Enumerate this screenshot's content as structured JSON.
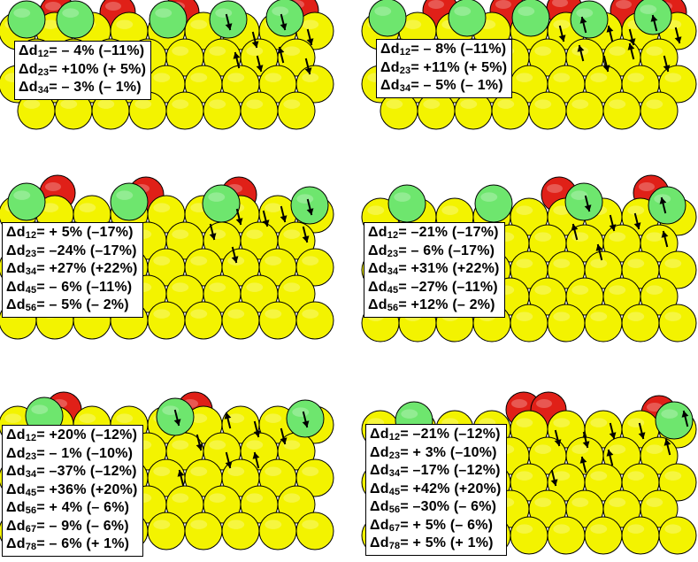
{
  "colors": {
    "yellow": "#f3f300",
    "green": "#6ee66e",
    "red": "#e02018",
    "outline": "#000000"
  },
  "panels": [
    {
      "id": "panel-top-left",
      "rows": [
        {
          "sym": "Δd",
          "sub": "12",
          "text": "= – 4%  (–11%)"
        },
        {
          "sym": "Δd",
          "sub": "23",
          "text": "= +10% (+ 5%)"
        },
        {
          "sym": "Δd",
          "sub": "34",
          "text": "= – 3%  (– 1%)"
        }
      ],
      "arrows": [
        "up",
        "up",
        "up",
        "up",
        "down",
        "up",
        "down",
        "up"
      ]
    },
    {
      "id": "panel-top-right",
      "rows": [
        {
          "sym": "Δd",
          "sub": "12",
          "text": "= – 8% (–11%)"
        },
        {
          "sym": "Δd",
          "sub": "23",
          "text": "= +11% (+ 5%)"
        },
        {
          "sym": "Δd",
          "sub": "34",
          "text": "= – 5%  (– 1%)"
        }
      ],
      "arrows": [
        "up",
        "down",
        "down",
        "up",
        "down",
        "up",
        "down",
        "up",
        "down",
        "up"
      ]
    },
    {
      "id": "panel-middle-left",
      "rows": [
        {
          "sym": "Δd",
          "sub": "12",
          "text": "=  + 5% (–17%)"
        },
        {
          "sym": "Δd",
          "sub": "23",
          "text": "= –24% (–17%)"
        },
        {
          "sym": "Δd",
          "sub": "34",
          "text": "= +27% (+22%)"
        },
        {
          "sym": "Δd",
          "sub": "45",
          "text": "=  – 6% (–11%)"
        },
        {
          "sym": "Δd",
          "sub": "56",
          "text": "=  – 5% (– 2%)"
        }
      ],
      "arrows": [
        "up",
        "up",
        "up",
        "up",
        "up",
        "up",
        "up"
      ]
    },
    {
      "id": "panel-middle-right",
      "rows": [
        {
          "sym": "Δd",
          "sub": "12",
          "text": "= –21% (–17%)"
        },
        {
          "sym": "Δd",
          "sub": "23",
          "text": "=  – 6% (–17%)"
        },
        {
          "sym": "Δd",
          "sub": "34",
          "text": "= +31% (+22%)"
        },
        {
          "sym": "Δd",
          "sub": "45",
          "text": "= –27% (–11%)"
        },
        {
          "sym": "Δd",
          "sub": "56",
          "text": "= +12% (– 2%)"
        }
      ],
      "arrows": [
        "up",
        "down",
        "up",
        "up",
        "down",
        "down",
        "down"
      ]
    },
    {
      "id": "panel-bottom-left",
      "rows": [
        {
          "sym": "Δd",
          "sub": "12",
          "text": "= +20% (–12%)"
        },
        {
          "sym": "Δd",
          "sub": "23",
          "text": "=  – 1% (–10%)"
        },
        {
          "sym": "Δd",
          "sub": "34",
          "text": "= –37% (–12%)"
        },
        {
          "sym": "Δd",
          "sub": "45",
          "text": "= +36% (+20%)"
        },
        {
          "sym": "Δd",
          "sub": "56",
          "text": "= + 4% (–  6%)"
        },
        {
          "sym": "Δd",
          "sub": "67",
          "text": "=  – 9% (–  6%)"
        },
        {
          "sym": "Δd",
          "sub": "78",
          "text": "=  – 6% (+  1%)"
        }
      ],
      "arrows": [
        "up",
        "up",
        "down",
        "up",
        "up",
        "up",
        "down",
        "up",
        "down"
      ]
    },
    {
      "id": "panel-bottom-right",
      "rows": [
        {
          "sym": "Δd",
          "sub": "12",
          "text": "= –21% (–12%)"
        },
        {
          "sym": "Δd",
          "sub": "23",
          "text": "= + 3%  (–10%)"
        },
        {
          "sym": "Δd",
          "sub": "34",
          "text": "= –17% (–12%)"
        },
        {
          "sym": "Δd",
          "sub": "45",
          "text": "= +42% (+20%)"
        },
        {
          "sym": "Δd",
          "sub": "56",
          "text": "= –30% (–  6%)"
        },
        {
          "sym": "Δd",
          "sub": "67",
          "text": "= + 5%  (–  6%)"
        },
        {
          "sym": "Δd",
          "sub": "78",
          "text": "= + 5%  (+  1%)"
        }
      ],
      "arrows": [
        "up",
        "up",
        "up",
        "up",
        "down",
        "down",
        "up",
        "down",
        "down"
      ]
    }
  ]
}
